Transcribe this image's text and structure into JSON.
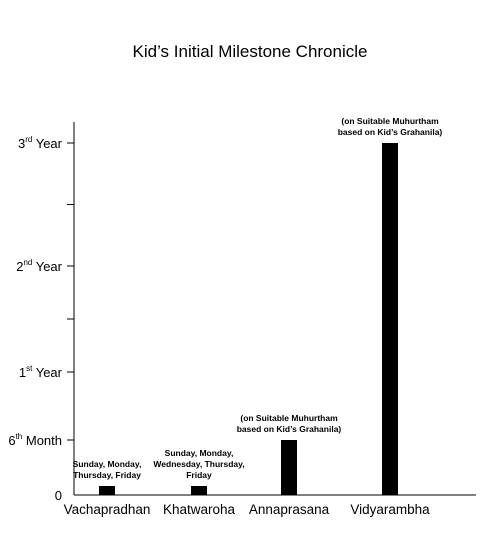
{
  "chart_data": {
    "type": "bar",
    "title": "Kid’s Initial Milestone Chronicle",
    "categories": [
      "Vachapradhan",
      "Khatwaroha",
      "Annaprasana",
      "Vidyarambha"
    ],
    "values_months": [
      0.5,
      0.5,
      6,
      36
    ],
    "ylim_months": [
      0,
      36
    ],
    "y_ticks": [
      {
        "months": 0,
        "label": "0",
        "sup": ""
      },
      {
        "months": 6,
        "label": "6",
        "sup": "th",
        "suffix": " Month"
      },
      {
        "months": 12,
        "label": "1",
        "sup": "st",
        "suffix": " Year"
      },
      {
        "months": 24,
        "label": "2",
        "sup": "nd",
        "suffix": " Year"
      },
      {
        "months": 36,
        "label": "3",
        "sup": "rd",
        "suffix": " Year"
      }
    ],
    "minor_ticks_months": [
      18,
      30
    ],
    "annotations": [
      [
        "Sunday, Monday,",
        "Thursday, Friday"
      ],
      [
        "Sunday, Monday,",
        "Wednesday, Thursday,",
        "Friday"
      ],
      [
        "(on Suitable Muhurtham",
        "based on Kid’s Grahanila)"
      ],
      [
        "(on Suitable Muhurtham",
        "based on Kid’s Grahanila)"
      ]
    ],
    "bar_color": "#000000",
    "grid": false
  }
}
